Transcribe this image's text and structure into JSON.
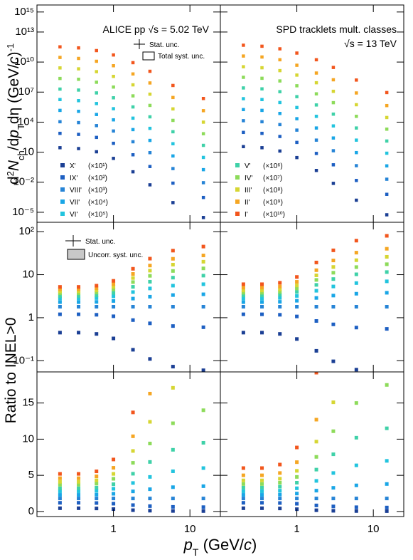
{
  "chart_data": [
    {
      "type": "scatter",
      "annotation": "ALICE pp √s = 5.02 TeV",
      "ylabel": [
        "d",
        "2",
        "N",
        "ch",
        "/d",
        "p",
        "T",
        "dη (GeV/",
        "c",
        ")",
        "-1"
      ],
      "ratio_ylabel": "Ratio to INEL>0",
      "xlabel": [
        "p",
        "T",
        " (GeV/",
        "c",
        ")"
      ],
      "stat_label": "Stat. unc.",
      "syst_label": "Total syst. unc.",
      "ratio_stat_label": "Stat. unc.",
      "ratio_syst_label": "Uncorr. syst. unc.",
      "x": [
        0.2,
        0.35,
        0.6,
        1,
        1.8,
        3,
        6,
        15
      ],
      "xlim": [
        0.1,
        25
      ],
      "xticks": [
        1,
        10
      ],
      "xscale": "log",
      "ylim": [
        1e-06,
        5000000000000000.0
      ],
      "yscale": "log",
      "yticks": [
        {
          "value": 1e-05,
          "label": "10⁻⁵"
        },
        {
          "value": 0.01,
          "label": "10⁻²"
        },
        10,
        {
          "value": 10000.0,
          "label": "10⁴"
        },
        {
          "value": 10000000.0,
          "label": "10⁷"
        },
        {
          "value": 10000000000.0,
          "label": "10¹⁰"
        },
        {
          "value": 10000000000000.0,
          "label": "10¹³"
        },
        {
          "value": 1000000000000000.0,
          "label": "10¹⁵"
        }
      ],
      "ratio_log_ylim": [
        0.055,
        165
      ],
      "ratio_log_yscale": "log",
      "ratio_log_yticks": [
        {
          "value": 0.1,
          "label": "10⁻¹"
        },
        1,
        10,
        {
          "value": 100,
          "label": "10²"
        }
      ],
      "ratio_ylim": [
        -0.7,
        19.3
      ],
      "ratio_yscale": "linear",
      "ratio_yticks": [
        0,
        5,
        10,
        15
      ],
      "series": [
        {
          "name": "X'",
          "legend_label": "(×10¹)",
          "color": "#1b3f94",
          "values": [
            28.0,
            23.0,
            11.0,
            2.4,
            0.11,
            0.0055,
            9.2e-05,
            3e-06
          ],
          "ratio": [
            0.45,
            0.45,
            0.42,
            0.33,
            0.18,
            0.11,
            0.073,
            0.06
          ]
        },
        {
          "name": "IX'",
          "legend_label": "(×10²)",
          "color": "#1d5fc2",
          "values": [
            760.0,
            600.0,
            300.0,
            77.0,
            5.5,
            0.37,
            0.0081,
            0.0003
          ],
          "ratio": [
            1.2,
            1.2,
            1.17,
            1.08,
            0.88,
            0.74,
            0.64,
            0.6
          ]
        },
        {
          "name": "VIII'",
          "legend_label": "(×10³)",
          "color": "#2684d6",
          "values": [
            11000.0,
            9000.0,
            4500.0,
            1300.0,
            110.0,
            9.0,
            0.23,
            0.009
          ],
          "ratio": [
            1.8,
            1.8,
            1.8,
            1.8,
            1.8,
            1.8,
            1.8,
            1.8
          ]
        },
        {
          "name": "VII'",
          "legend_label": "(×10⁴)",
          "color": "#19a6e6",
          "values": [
            150000.0,
            120000.0,
            58000.0,
            17000.0,
            1800.0,
            150.0,
            4.2,
            0.18
          ],
          "ratio": [
            2.3,
            2.3,
            2.33,
            2.45,
            2.78,
            3.08,
            3.36,
            3.5
          ]
        },
        {
          "name": "VI'",
          "legend_label": "(×10⁵)",
          "color": "#22c4de",
          "values": [
            1800000.0,
            1400000.0,
            720000.0,
            220000.0,
            25000.0,
            2400.0,
            70.0,
            3.0
          ],
          "ratio": [
            2.8,
            2.8,
            2.86,
            3.14,
            3.94,
            4.78,
            5.56,
            6.0
          ]
        },
        {
          "name": "V'",
          "legend_label": "(×10⁶)",
          "color": "#3fd1a8",
          "values": [
            20000000.0,
            16000000.0,
            8300000.0,
            2700000.0,
            330000.0,
            34000.0,
            1100.0,
            48.0
          ],
          "ratio": [
            3.2,
            3.2,
            3.3,
            3.77,
            5.22,
            6.85,
            8.53,
            9.5
          ]
        },
        {
          "name": "IV'",
          "legend_label": "(×10⁷)",
          "color": "#8ddb5a",
          "values": [
            230000000.0,
            190000000.0,
            97000000.0,
            32000000.0,
            4200000.0,
            470000.0,
            15000.0,
            700.0
          ],
          "ratio": [
            3.7,
            3.7,
            3.85,
            4.52,
            6.73,
            9.4,
            12.2,
            14
          ]
        },
        {
          "name": "III'",
          "legend_label": "(×10⁸)",
          "color": "#d6d633",
          "values": [
            2600000000.0,
            2100000000.0,
            1100000000.0,
            370000000.0,
            53000000.0,
            6200000.0,
            210000.0,
            10000.0
          ],
          "ratio": [
            4.1,
            4.1,
            4.31,
            5.2,
            8.37,
            12.4,
            17.1,
            20
          ]
        },
        {
          "name": "II'",
          "legend_label": "(×10⁹)",
          "color": "#f5a623",
          "values": [
            29000000000.0,
            23000000000.0,
            12000000000.0,
            4300000000.0,
            650000000.0,
            82000000.0,
            2900000.0,
            140000.0
          ],
          "ratio": [
            4.6,
            4.6,
            4.86,
            6.04,
            10.4,
            16.3,
            23.4,
            28
          ]
        },
        {
          "name": "I'",
          "legend_label": "(×10¹⁰)",
          "color": "#f2561d",
          "values": [
            330000000000.0,
            260000000000.0,
            140000000000.0,
            51000000000.0,
            8700000000.0,
            1200000000.0,
            46000000.0,
            2300000.0
          ],
          "ratio": [
            5.2,
            5.2,
            5.55,
            7.19,
            13.7,
            23.6,
            36.2,
            45
          ]
        }
      ]
    },
    {
      "type": "scatter",
      "annotation": [
        "SPD tracklets mult. classes",
        "√s = 13 TeV"
      ],
      "x": [
        0.2,
        0.35,
        0.6,
        1,
        1.8,
        3,
        6,
        15
      ],
      "xlim": [
        0.1,
        25
      ],
      "xticks": [
        1,
        10
      ],
      "xscale": "log",
      "series": [
        {
          "color": "#1b3f94",
          "values": [
            36.0,
            28.0,
            13.0,
            2.9,
            0.15,
            0.0077,
            0.00016,
            5.6e-06
          ],
          "ratio": [
            0.45,
            0.45,
            0.42,
            0.32,
            0.17,
            0.097,
            0.062,
            0.05
          ]
        },
        {
          "color": "#1d5fc2",
          "values": [
            950.0,
            760.0,
            370.0,
            95.0,
            7.5,
            0.55,
            0.015,
            0.00062
          ],
          "ratio": [
            1.2,
            1.2,
            1.17,
            1.07,
            0.84,
            0.7,
            0.59,
            0.55
          ]
        },
        {
          "color": "#2684d6",
          "values": [
            14000.0,
            11000.0,
            5700.0,
            1600.0,
            160.0,
            14.0,
            0.45,
            0.02
          ],
          "ratio": [
            1.8,
            1.8,
            1.8,
            1.8,
            1.8,
            1.8,
            1.8,
            1.8
          ]
        },
        {
          "color": "#19a6e6",
          "values": [
            180000.0,
            150000.0,
            74000.0,
            22000.0,
            2600.0,
            260.0,
            9.1,
            0.43
          ],
          "ratio": [
            2.3,
            2.3,
            2.34,
            2.48,
            2.88,
            3.27,
            3.61,
            3.8
          ]
        },
        {
          "color": "#22c4de",
          "values": [
            2200000.0,
            1800000.0,
            910000.0,
            290000.0,
            38000.0,
            4200.0,
            160.0,
            7.9
          ],
          "ratio": [
            2.8,
            2.8,
            2.88,
            3.21,
            4.23,
            5.32,
            6.38,
            7.0
          ]
        },
        {
          "color": "#3fd1a8",
          "values": [
            26000000.0,
            21000000.0,
            11000000.0,
            3500000.0,
            520000.0,
            63000.0,
            2600.0,
            130.0
          ],
          "ratio": [
            3.3,
            3.3,
            3.43,
            3.98,
            5.79,
            7.91,
            10.2,
            11.5
          ]
        },
        {
          "color": "#8ddb5a",
          "values": [
            300000000.0,
            240000000.0,
            130000000.0,
            43000000.0,
            6700000.0,
            880000.0,
            38000.0,
            2000.0
          ],
          "ratio": [
            3.8,
            3.8,
            3.98,
            4.78,
            7.55,
            11.1,
            15.0,
            17.5
          ]
        },
        {
          "color": "#d6d633",
          "values": [
            3400000000.0,
            2700000000.0,
            1400000000.0,
            500000000.0,
            86000000.0,
            12000000.0,
            550000.0,
            29000.0
          ],
          "ratio": [
            4.3,
            4.3,
            4.53,
            5.62,
            9.66,
            15.1,
            21.7,
            26
          ]
        },
        {
          "color": "#f5a623",
          "values": [
            40000000000.0,
            32000000000.0,
            17000000000.0,
            4800000000.0,
            800000000.0,
            170000000.0,
            8200000.0,
            450000.0
          ],
          "ratio": [
            5.0,
            5.0,
            5.32,
            6.82,
            12.7,
            21.4,
            32.5,
            40
          ]
        },
        {
          "color": "#f2561d",
          "values": [
            480000000000.0,
            380000000000.0,
            210000000000.0,
            79000000000.0,
            17000000000.0,
            2900000000.0,
            160000000.0,
            9000000.0
          ],
          "ratio": [
            6.0,
            6.0,
            6.49,
            8.85,
            19.2,
            36.8,
            61.8,
            80
          ]
        }
      ]
    }
  ]
}
